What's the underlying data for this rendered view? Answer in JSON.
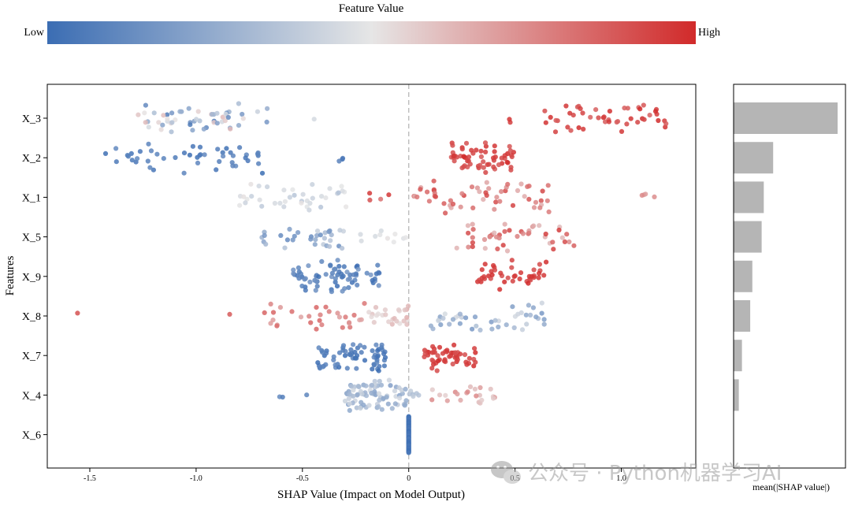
{
  "colors": {
    "low": "#3b6db3",
    "mid": "#e6e6e6",
    "high": "#d12a2a",
    "bar": "#b5b5b5",
    "axis": "#000000",
    "zero_line": "#bdbdbd"
  },
  "colorbar": {
    "title": "Feature Value",
    "low_label": "Low",
    "high_label": "High"
  },
  "watermark": {
    "text": "公众号 · Python机器学习AI",
    "icon": "wechat-icon"
  },
  "chart_data": [
    {
      "type": "scatter",
      "subtype": "shap-beeswarm",
      "xlabel": "SHAP Value (Impact on Model Output)",
      "ylabel": "Features",
      "xlim": [
        -1.7,
        1.35
      ],
      "xticks": [
        -1.5,
        -1.0,
        -0.5,
        0,
        0.5,
        1.0
      ],
      "xtick_labels": [
        "-1.5",
        "-1.0",
        "-0.5",
        "0",
        "0.5",
        "1.0"
      ],
      "zero_line": true,
      "features": [
        {
          "name": "X_3",
          "clusters": [
            {
              "x0": -1.3,
              "x1": -0.65,
              "n": 55,
              "v0": 0.05,
              "v1": 0.62
            },
            {
              "x0": -0.45,
              "x1": -0.42,
              "n": 1,
              "v0": 0.4,
              "v1": 0.45
            },
            {
              "x0": 0.42,
              "x1": 0.5,
              "n": 2,
              "v0": 0.9,
              "v1": 1.0
            },
            {
              "x0": 0.63,
              "x1": 1.22,
              "n": 48,
              "v0": 0.85,
              "v1": 1.0
            }
          ]
        },
        {
          "name": "X_2",
          "clusters": [
            {
              "x0": -1.43,
              "x1": -0.68,
              "n": 48,
              "v0": 0.0,
              "v1": 0.12
            },
            {
              "x0": -0.33,
              "x1": -0.31,
              "n": 3,
              "v0": 0.0,
              "v1": 0.1
            },
            {
              "x0": 0.2,
              "x1": 0.5,
              "n": 62,
              "v0": 0.88,
              "v1": 1.0
            }
          ]
        },
        {
          "name": "X_1",
          "clusters": [
            {
              "x0": -0.8,
              "x1": -0.28,
              "n": 38,
              "v0": 0.35,
              "v1": 0.52
            },
            {
              "x0": -0.2,
              "x1": -0.05,
              "n": 4,
              "v0": 0.75,
              "v1": 1.0
            },
            {
              "x0": 0.0,
              "x1": 0.68,
              "n": 55,
              "v0": 0.65,
              "v1": 0.95
            },
            {
              "x0": 1.02,
              "x1": 1.22,
              "n": 4,
              "v0": 0.65,
              "v1": 0.85
            }
          ]
        },
        {
          "name": "X_5",
          "clusters": [
            {
              "x0": -0.73,
              "x1": -0.3,
              "n": 32,
              "v0": 0.12,
              "v1": 0.42
            },
            {
              "x0": -0.25,
              "x1": 0.0,
              "n": 10,
              "v0": 0.42,
              "v1": 0.52
            },
            {
              "x0": 0.2,
              "x1": 0.78,
              "n": 45,
              "v0": 0.62,
              "v1": 0.95
            }
          ]
        },
        {
          "name": "X_9",
          "clusters": [
            {
              "x0": -0.55,
              "x1": -0.13,
              "n": 72,
              "v0": 0.0,
              "v1": 0.18
            },
            {
              "x0": 0.3,
              "x1": 0.65,
              "n": 42,
              "v0": 0.9,
              "v1": 1.0
            }
          ]
        },
        {
          "name": "X_8",
          "clusters": [
            {
              "x0": -1.57,
              "x1": -1.55,
              "n": 1,
              "v0": 0.85,
              "v1": 0.9
            },
            {
              "x0": -0.85,
              "x1": -0.83,
              "n": 1,
              "v0": 0.85,
              "v1": 0.9
            },
            {
              "x0": -0.68,
              "x1": -0.15,
              "n": 30,
              "v0": 0.65,
              "v1": 0.85
            },
            {
              "x0": -0.2,
              "x1": 0.0,
              "n": 25,
              "v0": 0.52,
              "v1": 0.65
            },
            {
              "x0": 0.1,
              "x1": 0.65,
              "n": 45,
              "v0": 0.18,
              "v1": 0.45
            }
          ]
        },
        {
          "name": "X_7",
          "clusters": [
            {
              "x0": -0.43,
              "x1": -0.1,
              "n": 68,
              "v0": 0.0,
              "v1": 0.12
            },
            {
              "x0": 0.07,
              "x1": 0.32,
              "n": 52,
              "v0": 0.9,
              "v1": 1.0
            }
          ]
        },
        {
          "name": "X_4",
          "clusters": [
            {
              "x0": -0.63,
              "x1": -0.58,
              "n": 2,
              "v0": 0.05,
              "v1": 0.12
            },
            {
              "x0": -0.48,
              "x1": -0.48,
              "n": 1,
              "v0": 0.05,
              "v1": 0.12
            },
            {
              "x0": -0.3,
              "x1": 0.0,
              "n": 80,
              "v0": 0.2,
              "v1": 0.45
            },
            {
              "x0": 0.0,
              "x1": 0.06,
              "n": 6,
              "v0": 0.3,
              "v1": 0.4
            },
            {
              "x0": 0.08,
              "x1": 0.42,
              "n": 22,
              "v0": 0.55,
              "v1": 0.75
            }
          ]
        },
        {
          "name": "X_6",
          "clusters": [
            {
              "x0": 0.0,
              "x1": 0.0,
              "n": 60,
              "v0": 0.0,
              "v1": 0.05
            }
          ]
        }
      ]
    },
    {
      "type": "bar",
      "orientation": "horizontal",
      "xlabel": "mean(|SHAP value|)",
      "categories": [
        "X_3",
        "X_2",
        "X_1",
        "X_5",
        "X_9",
        "X_8",
        "X_7",
        "X_4",
        "X_6"
      ],
      "values": [
        0.9,
        0.33,
        0.25,
        0.23,
        0.13,
        0.1,
        0.03,
        0.0,
        0.0
      ],
      "visible_bar_lengths_relative": [
        1.0,
        0.38,
        0.29,
        0.27,
        0.18,
        0.16,
        0.08,
        0.05,
        0.0
      ]
    }
  ]
}
